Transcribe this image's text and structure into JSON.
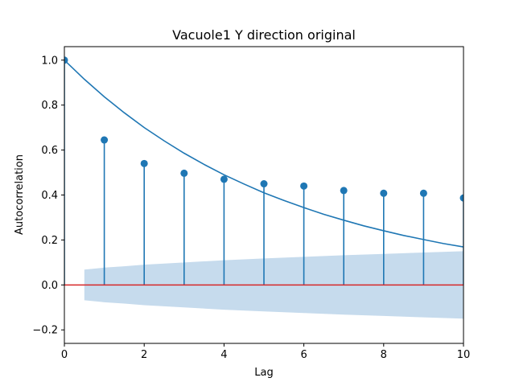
{
  "chart_data": {
    "type": "scatter",
    "title": "Vacuole1 Y direction original",
    "xlabel": "Lag",
    "ylabel": "Autocorrelation",
    "xlim": [
      0,
      10
    ],
    "ylim": [
      -0.26,
      1.06
    ],
    "x_ticks": [
      0,
      2,
      4,
      6,
      8,
      10
    ],
    "x_tick_labels": [
      "0",
      "2",
      "4",
      "6",
      "8",
      "10"
    ],
    "y_ticks": [
      -0.2,
      0.0,
      0.2,
      0.4,
      0.6,
      0.8,
      1.0
    ],
    "y_tick_labels": [
      "−0.2",
      "0.0",
      "0.2",
      "0.4",
      "0.6",
      "0.8",
      "1.0"
    ],
    "grid": false,
    "series": [
      {
        "kind": "stem",
        "lags": [
          0,
          1,
          2,
          3,
          4,
          5,
          6,
          7,
          8,
          9,
          10
        ],
        "values": [
          1.0,
          0.645,
          0.54,
          0.497,
          0.47,
          0.45,
          0.44,
          0.42,
          0.408,
          0.408,
          0.387
        ],
        "color": "#1f77b4"
      },
      {
        "kind": "line",
        "x": [
          0,
          0.5,
          1,
          1.5,
          2,
          2.5,
          3,
          3.5,
          4,
          4.5,
          5,
          5.5,
          6,
          6.5,
          7,
          7.5,
          8,
          8.5,
          9,
          9.5,
          10
        ],
        "y": [
          1.0,
          0.915,
          0.837,
          0.766,
          0.7,
          0.641,
          0.586,
          0.536,
          0.49,
          0.449,
          0.41,
          0.376,
          0.344,
          0.314,
          0.288,
          0.263,
          0.241,
          0.22,
          0.202,
          0.184,
          0.169
        ],
        "color": "#1f77b4"
      },
      {
        "kind": "confidence_band",
        "x": [
          0.5,
          1,
          1.5,
          2,
          3,
          4,
          5,
          6,
          7,
          8,
          9,
          10
        ],
        "upper": [
          0.068,
          0.077,
          0.083,
          0.09,
          0.1,
          0.11,
          0.118,
          0.125,
          0.132,
          0.138,
          0.144,
          0.15
        ],
        "lower": [
          -0.068,
          -0.077,
          -0.083,
          -0.09,
          -0.1,
          -0.11,
          -0.118,
          -0.125,
          -0.132,
          -0.138,
          -0.144,
          -0.15
        ],
        "color": "#c6dbed"
      }
    ],
    "baseline": {
      "y": 0.0,
      "color": "#d62728"
    }
  }
}
